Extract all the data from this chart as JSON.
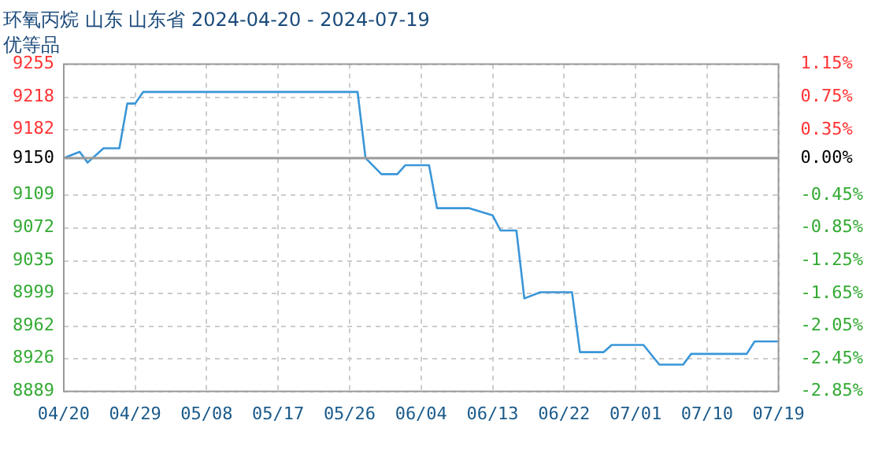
{
  "chart_data": {
    "type": "line",
    "title": "环氧丙烷 山东 山东省 2024-04-20 - 2024-07-19",
    "subtitle": "优等品",
    "x": [
      "2024-04-20",
      "2024-04-22",
      "2024-04-23",
      "2024-04-25",
      "2024-04-27",
      "2024-04-28",
      "2024-04-29",
      "2024-04-30",
      "2024-05-27",
      "2024-05-28",
      "2024-05-30",
      "2024-06-01",
      "2024-06-02",
      "2024-06-05",
      "2024-06-06",
      "2024-06-10",
      "2024-06-13",
      "2024-06-14",
      "2024-06-16",
      "2024-06-17",
      "2024-06-19",
      "2024-06-23",
      "2024-06-24",
      "2024-06-27",
      "2024-06-28",
      "2024-07-02",
      "2024-07-04",
      "2024-07-07",
      "2024-07-08",
      "2024-07-15",
      "2024-07-16",
      "2024-07-19"
    ],
    "series": [
      {
        "color": "#3a96d8",
        "values": [
          9150,
          9157,
          9145,
          9161,
          9161,
          9211,
          9211,
          9224,
          9224,
          9150,
          9132,
          9132,
          9142,
          9142,
          9094,
          9094,
          9086,
          9069,
          9069,
          8993,
          9000,
          9000,
          8933,
          8933,
          8941,
          8941,
          8919,
          8919,
          8931,
          8931,
          8945,
          8945
        ]
      }
    ],
    "xlim": [
      "2024-04-20",
      "2024-07-19"
    ],
    "xticks": [
      {
        "value": "2024-04-20",
        "label": "04/20"
      },
      {
        "value": "2024-04-29",
        "label": "04/29"
      },
      {
        "value": "2024-05-08",
        "label": "05/08"
      },
      {
        "value": "2024-05-17",
        "label": "05/17"
      },
      {
        "value": "2024-05-26",
        "label": "05/26"
      },
      {
        "value": "2024-06-04",
        "label": "06/04"
      },
      {
        "value": "2024-06-13",
        "label": "06/13"
      },
      {
        "value": "2024-06-22",
        "label": "06/22"
      },
      {
        "value": "2024-07-01",
        "label": "07/01"
      },
      {
        "value": "2024-07-10",
        "label": "07/10"
      },
      {
        "value": "2024-07-19",
        "label": "07/19"
      }
    ],
    "ylim": [
      8889,
      9255
    ],
    "yticks": [
      8889,
      8926,
      8962,
      8999,
      9035,
      9072,
      9109,
      9150,
      9182,
      9218,
      9255
    ],
    "y2lim": [
      -2.85,
      1.15
    ],
    "y2ticks": [
      {
        "value": -2.85,
        "label": "-2.85%"
      },
      {
        "value": -2.45,
        "label": "-2.45%"
      },
      {
        "value": -2.05,
        "label": "-2.05%"
      },
      {
        "value": -1.65,
        "label": "-1.65%"
      },
      {
        "value": -1.25,
        "label": "-1.25%"
      },
      {
        "value": -0.85,
        "label": "-0.85%"
      },
      {
        "value": -0.45,
        "label": "-0.45%"
      },
      {
        "value": 0,
        "label": "0.00%"
      },
      {
        "value": 0.35,
        "label": "0.35%"
      },
      {
        "value": 0.75,
        "label": "0.75%"
      },
      {
        "value": 1.15,
        "label": "1.15%"
      }
    ],
    "ref_lines": [
      {
        "axis": "y",
        "value": 9150,
        "color": "#999999"
      }
    ],
    "grid": true,
    "legend": false,
    "marker": "none",
    "line_style": "solid"
  }
}
